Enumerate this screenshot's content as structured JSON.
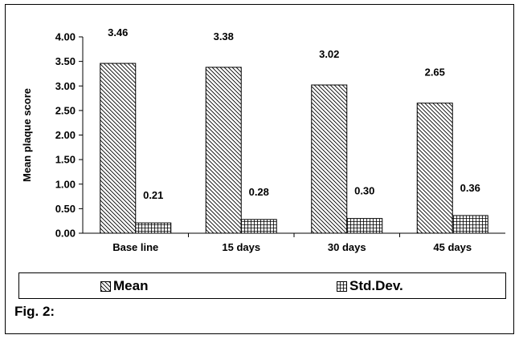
{
  "chart_data": {
    "type": "bar",
    "categories": [
      "Base line",
      "15 days",
      "30 days",
      "45 days"
    ],
    "series": [
      {
        "name": "Mean",
        "values": [
          3.46,
          3.38,
          3.02,
          2.65
        ],
        "pattern": "diagonal-hatch"
      },
      {
        "name": "Std.Dev.",
        "values": [
          0.21,
          0.28,
          0.3,
          0.36
        ],
        "pattern": "grid-hatch"
      }
    ],
    "data_labels": [
      [
        "3.46",
        "3.38",
        "3.02",
        "2.65"
      ],
      [
        "0.21",
        "0.28",
        "0.30",
        "0.36"
      ]
    ],
    "ylabel": "Mean plaque score",
    "xlabel": "",
    "ylim": [
      0,
      4
    ],
    "yticks": [
      "0.00",
      "0.50",
      "1.00",
      "1.50",
      "2.00",
      "2.50",
      "3.00",
      "3.50",
      "4.00"
    ],
    "grid": false,
    "legend_position": "bottom"
  },
  "caption": "Fig. 2:"
}
